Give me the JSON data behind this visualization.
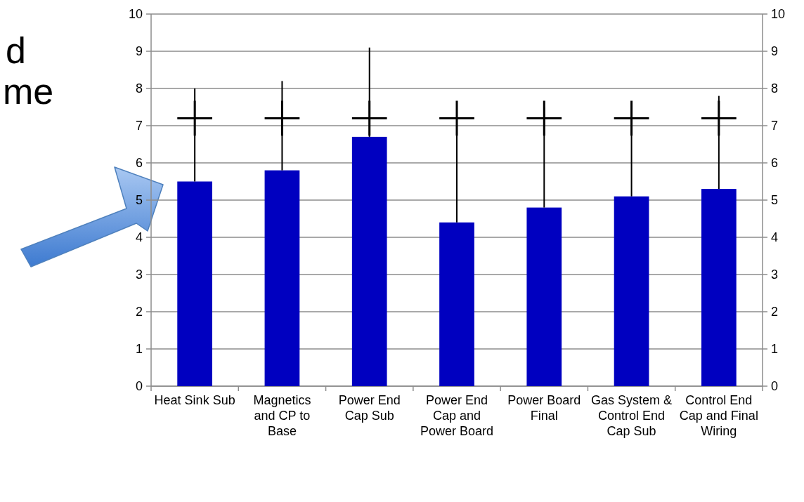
{
  "chart_data": {
    "type": "bar",
    "categories": [
      "Heat Sink Sub",
      "Magnetics and CP to Base",
      "Power End Cap Sub",
      "Power End Cap and Power Board",
      "Power Board Final",
      "Gas System & Control End Cap Sub",
      "Control End Cap and Final Wiring"
    ],
    "series": [
      {
        "color": "#0000c0",
        "values": [
          5.5,
          5.8,
          6.7,
          4.4,
          4.8,
          5.1,
          5.3
        ],
        "errors": [
          [
            5.5,
            8.0
          ],
          [
            5.8,
            8.2
          ],
          [
            6.7,
            9.1
          ],
          [
            4.4,
            7.4
          ],
          [
            4.8,
            7.5
          ],
          [
            5.1,
            7.6
          ],
          [
            5.3,
            7.8
          ]
        ]
      },
      {
        "type": "scatter",
        "color": "#000000",
        "marker": "cross",
        "x": [
          "Heat Sink Sub",
          "Magnetics and CP to Base",
          "Power End Cap Sub",
          "Power End Cap and Power Board",
          "Power Board Final",
          "Gas System & Control End Cap Sub",
          "Control End Cap and Final Wiring"
        ],
        "values": [
          7.2,
          7.2,
          7.2,
          7.2,
          7.2,
          7.2,
          7.2
        ]
      }
    ],
    "ylim": [
      0,
      10
    ],
    "yticks": [
      0,
      1,
      2,
      3,
      4,
      5,
      6,
      7,
      8,
      9,
      10
    ],
    "y2lim": [
      0,
      10
    ],
    "y2ticks": [
      0,
      1,
      2,
      3,
      4,
      5,
      6,
      7,
      8,
      9,
      10
    ],
    "grid": "y",
    "annotations": [
      "d",
      "me"
    ]
  }
}
